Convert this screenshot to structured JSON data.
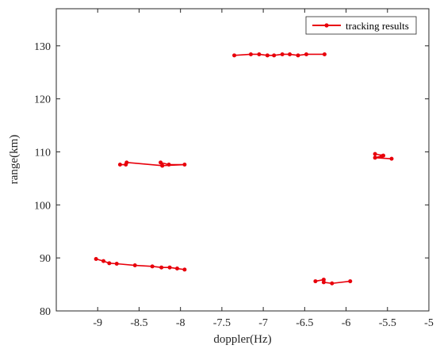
{
  "chart_data": {
    "type": "line",
    "title": "",
    "xlabel": "doppler(Hz)",
    "ylabel": "range(km)",
    "xlim": [
      -9.5,
      -5
    ],
    "ylim": [
      80,
      137
    ],
    "xticks": [
      -9,
      -8.5,
      -8,
      -7.5,
      -7,
      -6.5,
      -6,
      -5.5,
      -5
    ],
    "xtick_labels": [
      "-9",
      "-8.5",
      "-8",
      "-7.5",
      "-7",
      "-6.5",
      "-6",
      "-5.5",
      "-5"
    ],
    "yticks": [
      80,
      90,
      100,
      110,
      120,
      130
    ],
    "ytick_labels": [
      "80",
      "90",
      "100",
      "110",
      "120",
      "130"
    ],
    "grid": false,
    "legend": {
      "position": "top-right",
      "entries": [
        "tracking results"
      ]
    },
    "line_color": "#e8000b",
    "series": [
      {
        "name": "tracking results",
        "segments": [
          {
            "x": [
              -7.35,
              -7.15,
              -7.05,
              -6.95,
              -6.87,
              -6.77,
              -6.68,
              -6.58,
              -6.48,
              -6.26
            ],
            "y": [
              128.2,
              128.4,
              128.4,
              128.2,
              128.2,
              128.4,
              128.4,
              128.2,
              128.4,
              128.4
            ]
          },
          {
            "x": [
              -8.73,
              -8.66,
              -8.65,
              -8.22,
              -8.24,
              -8.14,
              -7.95,
              -8.22
            ],
            "y": [
              107.6,
              107.6,
              108.0,
              107.4,
              108.0,
              107.6,
              107.6,
              107.4
            ]
          },
          {
            "x": [
              -5.65,
              -5.55,
              -5.57,
              -5.65,
              -5.45
            ],
            "y": [
              109.6,
              109.3,
              109.2,
              108.9,
              108.7
            ]
          },
          {
            "x": [
              -9.02,
              -8.93,
              -8.86,
              -8.77,
              -8.55,
              -8.34,
              -8.23,
              -8.13,
              -8.04,
              -7.95
            ],
            "y": [
              89.8,
              89.4,
              89.0,
              88.9,
              88.6,
              88.4,
              88.2,
              88.2,
              88.0,
              87.8
            ]
          },
          {
            "x": [
              -6.37,
              -6.27,
              -6.27,
              -6.17,
              -5.95
            ],
            "y": [
              85.6,
              85.9,
              85.4,
              85.2,
              85.6
            ]
          }
        ]
      }
    ]
  }
}
